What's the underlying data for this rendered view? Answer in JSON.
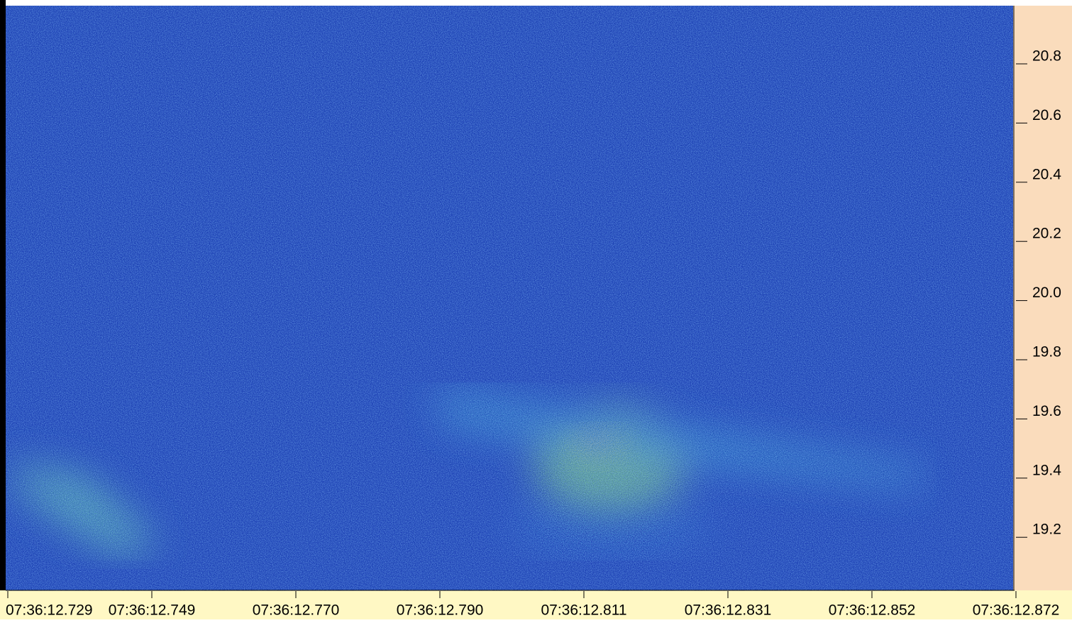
{
  "screen": {
    "x_axis": {
      "labels": [
        "07:36:12.729",
        "07:36:12.749",
        "07:36:12.770",
        "07:36:12.790",
        "07:36:12.811",
        "07:36:12.831",
        "07:36:12.852",
        "07:36:12.872"
      ]
    },
    "y_axis": {
      "labels": [
        "20.8",
        "20.6",
        "20.4",
        "20.2",
        "20.0",
        "19.8",
        "19.6",
        "19.4",
        "19.2"
      ]
    }
  }
}
